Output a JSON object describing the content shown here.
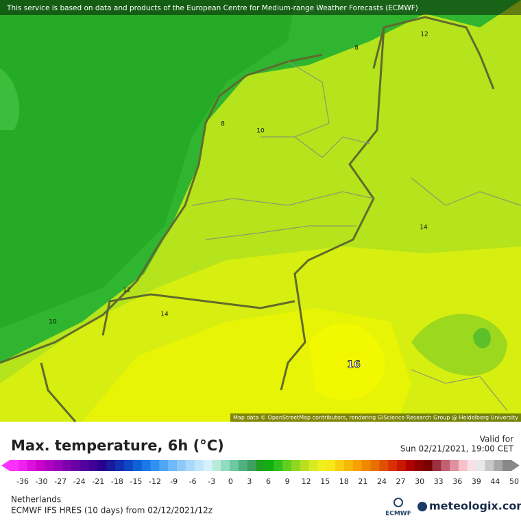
{
  "header": {
    "notice": "This service is based on data and products of the European Centre for Medium-range Weather Forecasts (ECMWF)"
  },
  "map": {
    "contour_labels": [
      "12",
      "8",
      "8",
      "10",
      "14",
      "12",
      "14",
      "10",
      "16"
    ],
    "attribution": "Map data © OpenStreetMap contributors, rendering GIScience Research Group @ Heidelberg University"
  },
  "legend": {
    "title": "Max. temperature, 6h (°C)",
    "valid_label": "Valid for",
    "valid_time": "Sun 02/21/2021, 19:00 CET",
    "scale_labels": [
      "-36",
      "-30",
      "-27",
      "-24",
      "-21",
      "-18",
      "-15",
      "-12",
      "-9",
      "-6",
      "-3",
      "0",
      "3",
      "6",
      "9",
      "12",
      "15",
      "18",
      "21",
      "24",
      "27",
      "30",
      "33",
      "36",
      "39",
      "44",
      "50"
    ],
    "colors": [
      "#ff33ff",
      "#ee22ee",
      "#dd11dd",
      "#cc00cc",
      "#b000c0",
      "#9900bb",
      "#8000b0",
      "#6a00a8",
      "#5500a0",
      "#400098",
      "#2a0090",
      "#1a1a9a",
      "#1030b0",
      "#1045c4",
      "#1060d8",
      "#1a78e8",
      "#3090f0",
      "#50a5f5",
      "#70b8f8",
      "#90c8fa",
      "#a8d8fc",
      "#c0e6fd",
      "#d6f0fc",
      "#b8ecd8",
      "#90dcc0",
      "#6cc8a0",
      "#50b080",
      "#3fa060",
      "#20a020",
      "#10b010",
      "#30c020",
      "#60d020",
      "#90d820",
      "#b8e020",
      "#d8ea20",
      "#f0f020",
      "#f8e818",
      "#f8d010",
      "#f8b808",
      "#f8a000",
      "#f08800",
      "#e87000",
      "#e05000",
      "#d83000",
      "#c81800",
      "#b00000",
      "#900000",
      "#780000",
      "#9a3040",
      "#c06070",
      "#e090a0",
      "#f8c0c8",
      "#f8e0e8",
      "#e8e8e8",
      "#c8c8c8",
      "#a8a8a8",
      "#888888"
    ]
  },
  "footer": {
    "region": "Netherlands",
    "model": "ECMWF IFS HRES (10 days) from 02/12/2021/12z",
    "ecmwf_logo": "ECMWF",
    "brand": "meteologix.com"
  }
}
